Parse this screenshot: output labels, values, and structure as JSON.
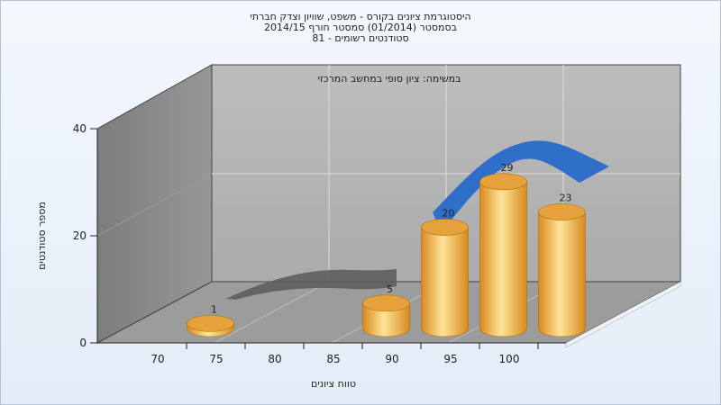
{
  "chart_data": {
    "type": "bar",
    "title_lines": [
      "היסטוגרמת ציונים בקורס - משפט, שוויון וצדק חברתי",
      "בסמסטר  (01/2014)  סמסטר חורף 2014/15",
      "סטודנטים רשומים - 81"
    ],
    "subtitle": "במשימה: ציון סופי במחשב המרכזי",
    "xlabel": "טווח ציונים",
    "ylabel": "מספר סטודנטים",
    "x_ticks": [
      "70",
      "75",
      "80",
      "85",
      "90",
      "95",
      "100"
    ],
    "y_ticks": [
      "0",
      "20",
      "40"
    ],
    "ylim": [
      0,
      40
    ],
    "bars": [
      {
        "x": 72.5,
        "value": 1,
        "label": "1"
      },
      {
        "x": 87.5,
        "value": 5,
        "label": "5"
      },
      {
        "x": 92.5,
        "value": 20,
        "label": "20"
      },
      {
        "x": 97.5,
        "value": 29,
        "label": "29"
      },
      {
        "x": 102.5,
        "value": 23,
        "label": "23"
      }
    ],
    "grid": true,
    "colors": {
      "bar": "#e8a53c",
      "bar_light": "#ffe49a",
      "curve": "#2f6fc9",
      "curve_back": "#666666",
      "back_wall": "#b4b4b4",
      "side_wall": "#8a8a8a",
      "floor": "#9a9a9a"
    }
  }
}
